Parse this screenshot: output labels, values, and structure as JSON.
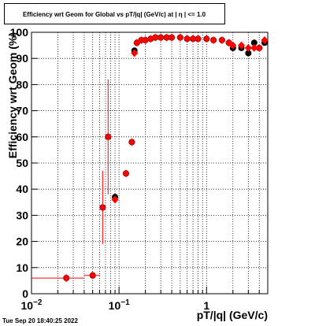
{
  "chart_data": {
    "type": "scatter",
    "title": "Efficiency wrt Geom for Global vs pT/|q| (GeV/c) at |  η  | <= 1.0",
    "x_label": "pT/|q| (GeV/c)",
    "y_label": "Efficiency wrt Geom (%)",
    "timestamp": "Tue Sep 20 18:40:25 2022",
    "log_x": true,
    "grid": true,
    "xlim": [
      0.01,
      5
    ],
    "ylim": [
      0,
      100
    ],
    "xticks": [
      {
        "value": 0.01,
        "label": "10",
        "exponent": "−2"
      },
      {
        "value": 0.1,
        "label": "10",
        "exponent": "−1"
      },
      1
    ],
    "xminorticks": [
      0.02,
      0.03,
      0.04,
      0.05,
      0.06,
      0.07,
      0.08,
      0.09,
      0.2,
      0.3,
      0.4,
      0.5,
      0.6,
      0.7,
      0.8,
      0.9,
      2,
      3,
      4
    ],
    "yticks": [
      0,
      10,
      20,
      30,
      40,
      50,
      60,
      70,
      80,
      90,
      100
    ],
    "x": [
      0.025,
      0.05,
      0.065,
      0.075,
      0.09,
      0.12,
      0.14,
      0.15,
      0.16,
      0.18,
      0.2,
      0.23,
      0.26,
      0.3,
      0.35,
      0.4,
      0.5,
      0.6,
      0.7,
      0.8,
      1.0,
      1.2,
      1.5,
      1.8,
      2.0,
      2.5,
      3.0,
      3.5,
      4.0,
      4.6
    ],
    "series": [
      {
        "color": "#000000",
        "marker": "circle",
        "values": [
          6,
          7,
          33,
          60,
          37,
          46,
          58,
          93,
          96,
          97,
          97,
          97.5,
          98,
          98,
          98,
          98,
          98,
          97.5,
          97.5,
          97.5,
          97.5,
          97,
          97,
          96,
          94,
          94,
          92,
          96,
          94,
          96
        ]
      },
      {
        "color": "#ff0000",
        "marker": "diamond",
        "values": [
          6,
          7,
          33,
          60,
          36,
          46,
          58,
          92,
          96,
          97,
          97,
          97.5,
          98,
          98,
          98,
          98,
          98,
          97.5,
          97.5,
          97.5,
          97.5,
          97,
          97,
          96,
          95,
          95,
          94,
          94,
          94,
          97
        ],
        "errors": [
          0.5,
          0.5,
          14,
          22,
          1,
          1,
          1,
          1,
          0.5,
          0.5,
          0.5,
          0.5,
          0.5,
          0.5,
          0.5,
          0.5,
          0.5,
          0.5,
          0.5,
          0.5,
          0.5,
          0.5,
          0.5,
          0.5,
          0.5,
          0.5,
          0.5,
          0.5,
          0.5,
          0.5
        ],
        "xerrors": [
          0.015,
          0.01,
          0.003,
          0.003,
          0.005,
          0.005,
          0.003,
          0.003,
          0.005,
          0.005,
          0.005,
          0.01,
          0.01,
          0.01,
          0.01,
          0.01,
          0.02,
          0.02,
          0.02,
          0.03,
          0.05,
          0.05,
          0.07,
          0.07,
          0.1,
          0.1,
          0.15,
          0.15,
          0.2,
          0.2
        ]
      }
    ]
  }
}
